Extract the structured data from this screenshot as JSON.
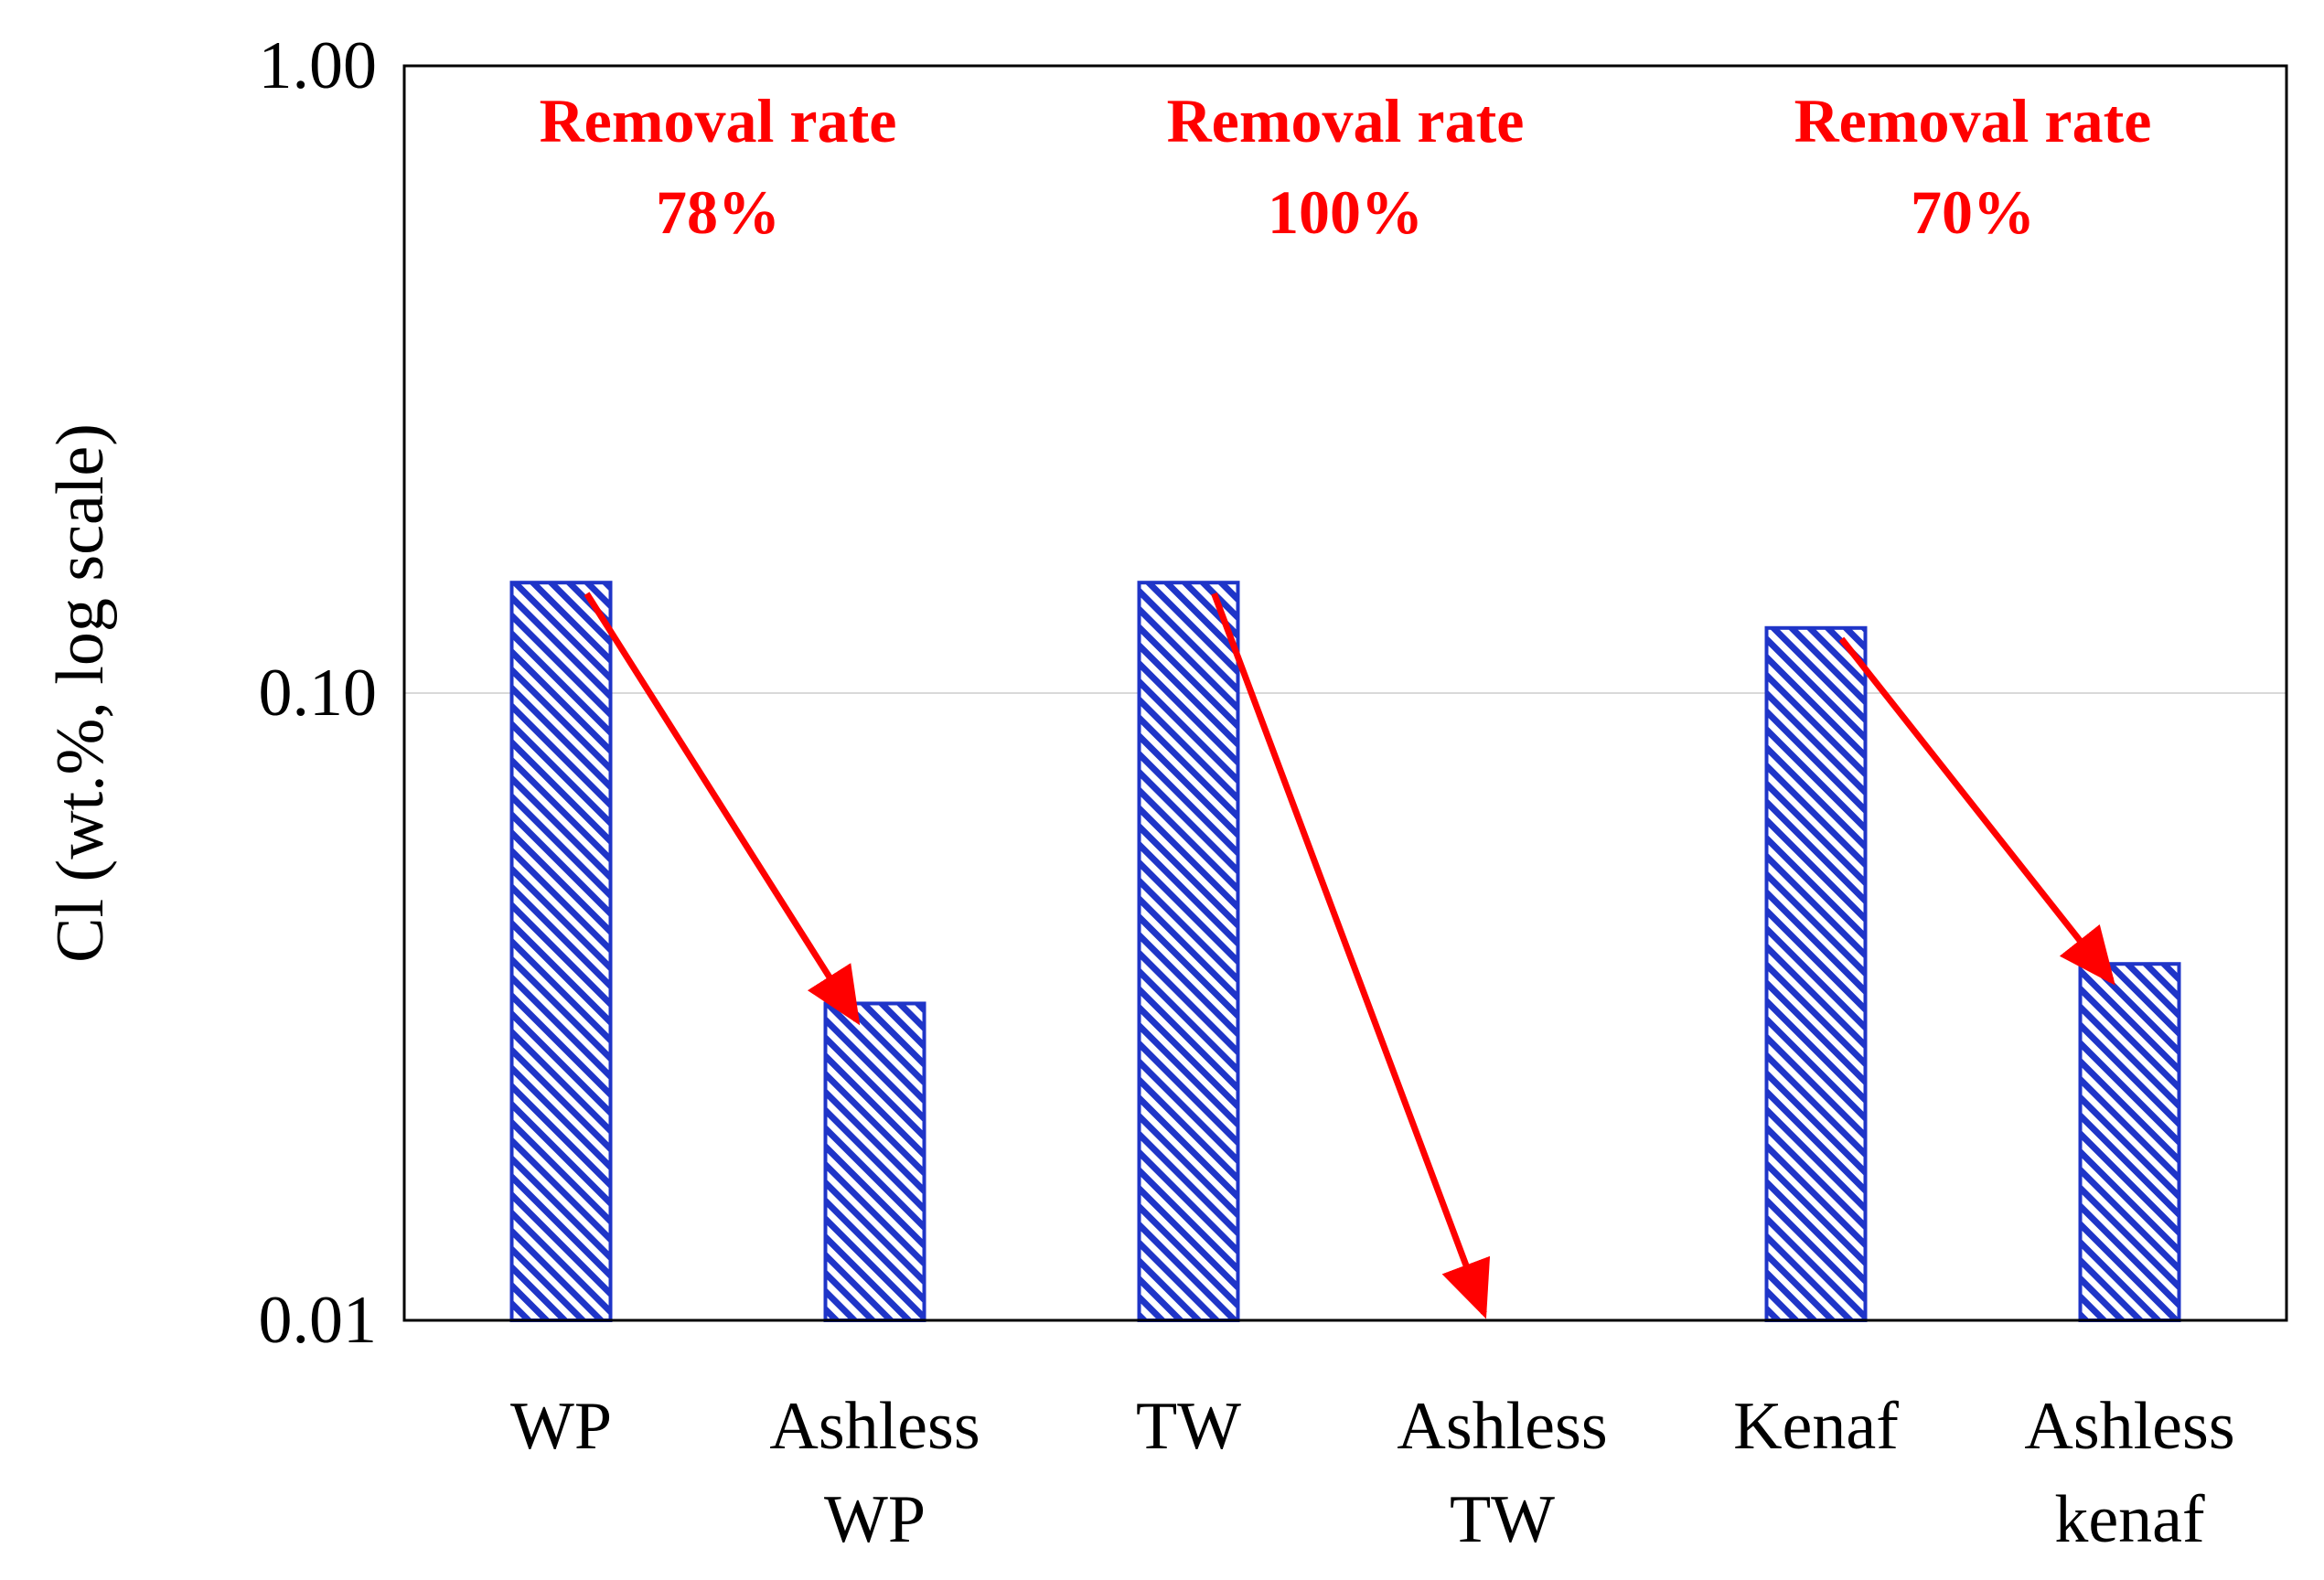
{
  "chart_data": {
    "type": "bar",
    "title": "",
    "xlabel": "",
    "ylabel": "Cl (wt.%, log scale)",
    "yscale": "log",
    "ylim": [
      0.01,
      1.0
    ],
    "yticks": [
      {
        "value": 0.01,
        "label": "0.01"
      },
      {
        "value": 0.1,
        "label": "0.10"
      },
      {
        "value": 1.0,
        "label": "1.00"
      }
    ],
    "categories": [
      {
        "line1": "WP",
        "line2": ""
      },
      {
        "line1": "Ashless",
        "line2": "WP"
      },
      {
        "line1": "TW",
        "line2": ""
      },
      {
        "line1": "Ashless",
        "line2": "TW"
      },
      {
        "line1": "Kenaf",
        "line2": ""
      },
      {
        "line1": "Ashless",
        "line2": "kenaf"
      }
    ],
    "values": [
      0.15,
      0.032,
      0.15,
      0.01,
      0.127,
      0.037
    ],
    "bar_color": "#1f35c8",
    "bar_pattern": "diagonal hatch",
    "grid": "horizontal at 0.10",
    "annotations": [
      {
        "line1": "Removal rate",
        "line2": "78%",
        "from": 0,
        "to": 1
      },
      {
        "line1": "Removal rate",
        "line2": "100%",
        "from": 2,
        "to": 3
      },
      {
        "line1": "Removal rate",
        "line2": "70%",
        "from": 4,
        "to": 5
      }
    ],
    "annotation_color": "#ff0000"
  }
}
